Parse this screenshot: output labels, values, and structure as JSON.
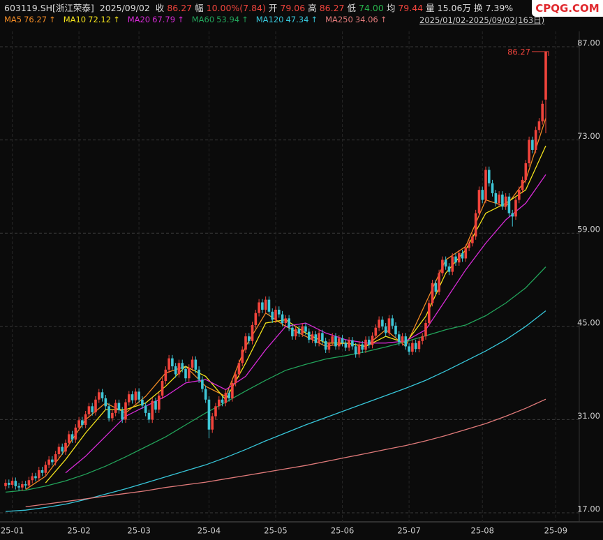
{
  "header": {
    "symbol": "603119.SH[浙江荣泰]",
    "date": "2025/09/02",
    "fields": [
      {
        "label": "收",
        "value": "86.27",
        "color": "#f0443c"
      },
      {
        "label": "幅",
        "value": "10.00%(7.84)",
        "color": "#f0443c"
      },
      {
        "label": "开",
        "value": "79.06",
        "color": "#f0443c"
      },
      {
        "label": "高",
        "value": "86.27",
        "color": "#f0443c"
      },
      {
        "label": "低",
        "value": "74.00",
        "color": "#27b34c"
      },
      {
        "label": "均",
        "value": "79.44",
        "color": "#f0443c"
      },
      {
        "label": "量",
        "value": "15.06万",
        "color": "#dddddd"
      },
      {
        "label": "换",
        "value": "7.39%",
        "color": "#dddddd"
      }
    ]
  },
  "range": "2025/01/02-2025/09/02(163日)",
  "watermark": "CPQG.COM",
  "chart_data": {
    "type": "candlestick",
    "up_color": "#f0443c",
    "down_color": "#3ec6d6",
    "grid": true,
    "ylim": [
      17,
      87
    ],
    "yticks": [
      {
        "value": 17,
        "label": "17.00"
      },
      {
        "value": 31,
        "label": "31.00"
      },
      {
        "value": 45,
        "label": "45.00"
      },
      {
        "value": 59,
        "label": "59.00"
      },
      {
        "value": 73,
        "label": "73.00"
      },
      {
        "value": 87,
        "label": "87.00"
      }
    ],
    "xlim": [
      0,
      162
    ],
    "xticks": [
      {
        "value": 2,
        "label": "25-01"
      },
      {
        "value": 22,
        "label": "25-02"
      },
      {
        "value": 40,
        "label": "25-03"
      },
      {
        "value": 61,
        "label": "25-04"
      },
      {
        "value": 81,
        "label": "25-05"
      },
      {
        "value": 101,
        "label": "25-06"
      },
      {
        "value": 121,
        "label": "25-07"
      },
      {
        "value": 143,
        "label": "25-08"
      },
      {
        "value": 165,
        "label": "25-09"
      }
    ],
    "candles": [
      [
        21.0,
        22.0,
        20.5,
        21.5
      ],
      [
        21.5,
        22.0,
        20.7,
        21.2
      ],
      [
        21.2,
        22.3,
        20.7,
        21.8
      ],
      [
        21.8,
        22.3,
        20.5,
        21.0
      ],
      [
        21.0,
        21.5,
        20.3,
        20.8
      ],
      [
        20.8,
        21.8,
        20.3,
        21.3
      ],
      [
        21.3,
        21.8,
        20.6,
        21.1
      ],
      [
        21.1,
        22.4,
        20.6,
        21.9
      ],
      [
        21.9,
        23.0,
        21.4,
        22.5
      ],
      [
        22.5,
        23.0,
        21.7,
        22.2
      ],
      [
        22.2,
        23.9,
        21.7,
        23.4
      ],
      [
        23.4,
        23.9,
        22.5,
        23.0
      ],
      [
        23.0,
        24.7,
        22.5,
        24.2
      ],
      [
        24.2,
        25.5,
        23.7,
        25.0
      ],
      [
        25.0,
        25.5,
        24.1,
        24.6
      ],
      [
        24.6,
        26.3,
        24.1,
        25.8
      ],
      [
        25.8,
        27.4,
        25.3,
        26.9
      ],
      [
        26.9,
        27.4,
        25.7,
        26.2
      ],
      [
        26.2,
        28.0,
        25.7,
        27.5
      ],
      [
        27.5,
        29.3,
        27.0,
        28.8
      ],
      [
        28.8,
        29.3,
        27.5,
        28.0
      ],
      [
        28.0,
        30.3,
        27.5,
        29.8
      ],
      [
        29.8,
        31.4,
        29.3,
        30.9
      ],
      [
        30.9,
        31.4,
        29.7,
        30.2
      ],
      [
        30.2,
        32.3,
        29.7,
        31.8
      ],
      [
        31.8,
        33.5,
        31.3,
        33.0
      ],
      [
        33.0,
        33.5,
        31.6,
        32.1
      ],
      [
        32.1,
        34.5,
        31.6,
        34.0
      ],
      [
        34.0,
        35.6,
        33.5,
        35.1
      ],
      [
        35.1,
        35.6,
        33.7,
        34.2
      ],
      [
        34.2,
        34.7,
        32.5,
        33.0
      ],
      [
        33.0,
        33.5,
        30.7,
        31.2
      ],
      [
        31.2,
        32.5,
        30.7,
        32.0
      ],
      [
        32.0,
        34.0,
        31.5,
        33.5
      ],
      [
        33.5,
        34.0,
        31.9,
        32.4
      ],
      [
        32.4,
        32.9,
        30.5,
        31.0
      ],
      [
        31.0,
        34.1,
        30.5,
        33.6
      ],
      [
        33.6,
        35.3,
        33.1,
        34.8
      ],
      [
        34.8,
        35.3,
        33.4,
        33.9
      ],
      [
        33.9,
        35.7,
        33.4,
        35.2
      ],
      [
        35.2,
        35.7,
        33.5,
        34.0
      ],
      [
        34.0,
        34.5,
        32.6,
        33.1
      ],
      [
        33.1,
        33.6,
        31.5,
        32.0
      ],
      [
        32.0,
        32.5,
        30.5,
        31.0
      ],
      [
        31.0,
        34.3,
        30.5,
        33.8
      ],
      [
        33.8,
        34.3,
        32.0,
        32.5
      ],
      [
        32.5,
        35.1,
        32.0,
        34.6
      ],
      [
        34.6,
        37.3,
        34.1,
        36.8
      ],
      [
        36.8,
        39.0,
        36.3,
        38.5
      ],
      [
        38.5,
        40.7,
        38.0,
        40.2
      ],
      [
        40.2,
        40.7,
        38.5,
        39.0
      ],
      [
        39.0,
        39.5,
        37.3,
        37.8
      ],
      [
        37.8,
        40.0,
        37.3,
        39.5
      ],
      [
        39.5,
        40.0,
        38.1,
        38.6
      ],
      [
        38.6,
        39.1,
        36.7,
        37.2
      ],
      [
        37.2,
        39.3,
        36.7,
        38.8
      ],
      [
        38.8,
        40.5,
        38.3,
        40.0
      ],
      [
        40.0,
        40.5,
        38.0,
        38.5
      ],
      [
        38.5,
        39.0,
        36.5,
        37.0
      ],
      [
        37.0,
        37.5,
        35.1,
        35.6
      ],
      [
        35.6,
        36.1,
        33.5,
        34.0
      ],
      [
        34.0,
        34.5,
        28.2,
        29.5
      ],
      [
        29.5,
        32.0,
        29.0,
        31.5
      ],
      [
        31.5,
        33.5,
        31.0,
        33.0
      ],
      [
        33.0,
        34.5,
        32.5,
        34.0
      ],
      [
        34.0,
        34.5,
        33.0,
        33.5
      ],
      [
        33.5,
        35.5,
        33.0,
        35.0
      ],
      [
        35.0,
        35.5,
        33.7,
        34.2
      ],
      [
        34.2,
        37.0,
        33.7,
        36.5
      ],
      [
        36.5,
        38.3,
        36.0,
        37.8
      ],
      [
        37.8,
        40.0,
        37.3,
        39.5
      ],
      [
        39.5,
        42.0,
        39.0,
        41.5
      ],
      [
        41.5,
        44.0,
        41.0,
        43.5
      ],
      [
        43.5,
        44.0,
        42.3,
        42.8
      ],
      [
        42.8,
        45.7,
        42.3,
        45.2
      ],
      [
        45.2,
        47.5,
        44.7,
        47.0
      ],
      [
        47.0,
        49.1,
        46.5,
        48.6
      ],
      [
        48.6,
        49.1,
        47.0,
        47.5
      ],
      [
        47.5,
        49.5,
        47.0,
        49.0
      ],
      [
        49.0,
        49.5,
        46.7,
        47.2
      ],
      [
        47.2,
        47.7,
        45.5,
        46.0
      ],
      [
        46.0,
        48.0,
        45.5,
        47.5
      ],
      [
        47.5,
        48.0,
        46.3,
        46.8
      ],
      [
        46.8,
        47.3,
        45.0,
        45.5
      ],
      [
        45.5,
        46.7,
        45.0,
        46.2
      ],
      [
        46.2,
        46.7,
        44.3,
        44.8
      ],
      [
        44.8,
        45.3,
        43.0,
        43.5
      ],
      [
        43.5,
        45.1,
        43.0,
        44.6
      ],
      [
        44.6,
        45.1,
        43.4,
        43.9
      ],
      [
        43.9,
        45.5,
        43.4,
        45.0
      ],
      [
        45.0,
        45.5,
        43.7,
        44.2
      ],
      [
        44.2,
        44.7,
        42.5,
        43.0
      ],
      [
        43.0,
        44.3,
        42.5,
        43.8
      ],
      [
        43.8,
        44.3,
        42.0,
        42.5
      ],
      [
        42.5,
        44.5,
        42.0,
        44.0
      ],
      [
        44.0,
        44.5,
        42.3,
        42.8
      ],
      [
        42.8,
        43.3,
        41.0,
        41.5
      ],
      [
        41.5,
        43.1,
        41.0,
        42.6
      ],
      [
        42.6,
        44.0,
        42.1,
        43.5
      ],
      [
        43.5,
        44.0,
        41.5,
        42.0
      ],
      [
        42.0,
        43.7,
        41.5,
        43.2
      ],
      [
        43.2,
        43.7,
        42.0,
        42.5
      ],
      [
        42.5,
        43.0,
        41.3,
        41.8
      ],
      [
        41.8,
        43.4,
        41.3,
        42.9
      ],
      [
        42.9,
        43.4,
        41.5,
        42.0
      ],
      [
        42.0,
        42.5,
        40.3,
        40.8
      ],
      [
        40.8,
        42.8,
        40.3,
        42.3
      ],
      [
        42.3,
        42.8,
        41.0,
        41.5
      ],
      [
        41.5,
        43.5,
        41.0,
        43.0
      ],
      [
        43.0,
        43.5,
        41.7,
        42.2
      ],
      [
        42.2,
        44.1,
        41.7,
        43.6
      ],
      [
        43.6,
        45.3,
        43.1,
        44.8
      ],
      [
        44.8,
        46.5,
        44.3,
        46.0
      ],
      [
        46.0,
        46.5,
        44.5,
        45.0
      ],
      [
        45.0,
        45.5,
        43.5,
        44.0
      ],
      [
        44.0,
        46.7,
        43.5,
        46.2
      ],
      [
        46.2,
        46.7,
        44.6,
        45.1
      ],
      [
        45.1,
        45.6,
        43.3,
        43.8
      ],
      [
        43.8,
        44.3,
        42.1,
        42.6
      ],
      [
        42.6,
        44.0,
        42.1,
        43.5
      ],
      [
        43.5,
        44.0,
        41.5,
        42.0
      ],
      [
        42.0,
        42.5,
        40.7,
        41.2
      ],
      [
        41.2,
        43.0,
        40.7,
        42.5
      ],
      [
        42.5,
        43.0,
        41.1,
        41.6
      ],
      [
        41.6,
        43.3,
        41.1,
        42.8
      ],
      [
        42.8,
        44.0,
        42.3,
        43.5
      ],
      [
        43.5,
        46.0,
        43.0,
        45.5
      ],
      [
        45.5,
        49.0,
        45.0,
        48.5
      ],
      [
        48.5,
        52.0,
        48.0,
        51.5
      ],
      [
        51.5,
        52.0,
        49.7,
        50.2
      ],
      [
        50.2,
        53.5,
        49.7,
        53.0
      ],
      [
        53.0,
        55.5,
        52.5,
        55.0
      ],
      [
        55.0,
        55.5,
        53.5,
        54.0
      ],
      [
        54.0,
        54.5,
        52.7,
        53.2
      ],
      [
        53.2,
        56.0,
        52.7,
        55.5
      ],
      [
        55.5,
        56.0,
        54.1,
        54.6
      ],
      [
        54.6,
        56.5,
        54.1,
        56.0
      ],
      [
        56.0,
        56.5,
        54.7,
        55.2
      ],
      [
        55.2,
        57.3,
        54.7,
        56.8
      ],
      [
        56.8,
        58.0,
        56.3,
        57.5
      ],
      [
        57.5,
        59.0,
        57.0,
        58.5
      ],
      [
        58.5,
        62.5,
        58.0,
        62.0
      ],
      [
        62.0,
        66.0,
        61.5,
        65.5
      ],
      [
        65.5,
        66.0,
        63.5,
        64.0
      ],
      [
        64.0,
        69.0,
        63.5,
        68.5
      ],
      [
        68.5,
        69.0,
        66.0,
        66.5
      ],
      [
        66.5,
        67.0,
        64.5,
        65.0
      ],
      [
        65.0,
        65.5,
        63.0,
        63.5
      ],
      [
        63.5,
        65.3,
        63.0,
        64.8
      ],
      [
        64.8,
        65.3,
        62.5,
        63.0
      ],
      [
        63.0,
        65.0,
        62.5,
        64.5
      ],
      [
        64.5,
        65.0,
        61.5,
        62.0
      ],
      [
        62.0,
        62.5,
        60.0,
        61.5
      ],
      [
        61.5,
        64.5,
        61.0,
        64.0
      ],
      [
        64.0,
        66.0,
        63.5,
        65.5
      ],
      [
        65.5,
        67.5,
        65.0,
        67.0
      ],
      [
        67.0,
        70.0,
        66.5,
        69.5
      ],
      [
        69.5,
        73.5,
        69.0,
        73.0
      ],
      [
        73.0,
        73.5,
        71.0,
        71.5
      ],
      [
        71.5,
        75.0,
        71.0,
        74.5
      ],
      [
        74.5,
        76.3,
        74.0,
        75.8
      ],
      [
        75.8,
        78.9,
        75.3,
        78.43
      ],
      [
        79.06,
        86.27,
        74.0,
        86.27
      ]
    ],
    "ma_x": [
      0,
      6,
      12,
      18,
      24,
      30,
      36,
      42,
      48,
      54,
      60,
      66,
      72,
      78,
      84,
      90,
      96,
      102,
      108,
      114,
      120,
      126,
      132,
      138,
      144,
      150,
      156,
      162
    ],
    "series": [
      {
        "name": "MA5",
        "color": "#f08a24",
        "arrow": "↑",
        "values": [
          null,
          20.5,
          22.5,
          26.5,
          31.0,
          33.5,
          32.0,
          34.5,
          38.0,
          39.0,
          36.0,
          34.5,
          42.0,
          47.0,
          45.0,
          43.5,
          42.0,
          42.5,
          42.0,
          44.5,
          42.0,
          48.5,
          55.0,
          57.0,
          64.0,
          63.0,
          67.0,
          76.27
        ]
      },
      {
        "name": "MA10",
        "color": "#f2e21b",
        "arrow": "↑",
        "values": [
          null,
          null,
          21.5,
          25.0,
          29.0,
          32.5,
          32.5,
          33.5,
          36.0,
          39.0,
          37.5,
          34.0,
          39.5,
          45.5,
          46.0,
          44.0,
          42.5,
          42.5,
          42.0,
          43.5,
          42.5,
          46.5,
          53.0,
          56.5,
          62.0,
          63.5,
          65.5,
          72.12
        ]
      },
      {
        "name": "MA20",
        "color": "#d62ad6",
        "arrow": "↑",
        "values": [
          null,
          null,
          null,
          23.0,
          25.5,
          28.5,
          31.5,
          33.0,
          34.5,
          36.5,
          37.0,
          35.5,
          37.5,
          41.5,
          45.0,
          45.5,
          44.0,
          43.0,
          42.5,
          42.5,
          42.8,
          44.5,
          49.0,
          53.5,
          57.5,
          61.0,
          63.5,
          67.79
        ]
      },
      {
        "name": "MA60",
        "color": "#22a35a",
        "arrow": "↑",
        "values": [
          20.1,
          20.4,
          21.0,
          21.8,
          22.8,
          24.0,
          25.4,
          26.9,
          28.4,
          30.2,
          32.0,
          33.6,
          35.3,
          36.9,
          38.4,
          39.3,
          40.1,
          40.6,
          41.2,
          41.9,
          42.7,
          43.6,
          44.5,
          45.2,
          46.6,
          48.5,
          50.8,
          53.94
        ]
      },
      {
        "name": "MA120",
        "color": "#37c6d9",
        "arrow": "↑",
        "values": [
          17.2,
          17.4,
          17.8,
          18.3,
          19.0,
          19.8,
          20.6,
          21.5,
          22.4,
          23.3,
          24.2,
          25.3,
          26.5,
          27.8,
          29.0,
          30.2,
          31.3,
          32.4,
          33.5,
          34.6,
          35.7,
          36.9,
          38.3,
          39.8,
          41.3,
          43.0,
          45.0,
          47.34
        ]
      },
      {
        "name": "MA250",
        "color": "#e07a7a",
        "arrow": "↑",
        "values": [
          null,
          17.9,
          18.3,
          18.7,
          19.1,
          19.5,
          19.9,
          20.3,
          20.8,
          21.2,
          21.6,
          22.1,
          22.6,
          23.1,
          23.6,
          24.1,
          24.7,
          25.3,
          25.9,
          26.5,
          27.1,
          27.8,
          28.6,
          29.5,
          30.4,
          31.5,
          32.7,
          34.06
        ]
      }
    ]
  }
}
